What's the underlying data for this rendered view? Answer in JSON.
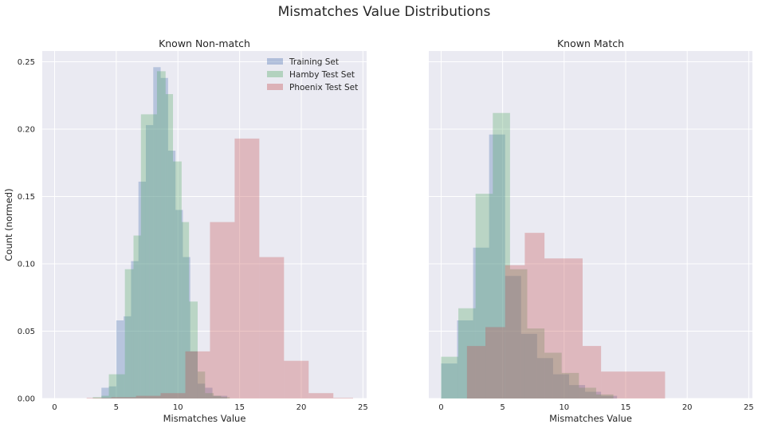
{
  "figure_title": "Mismatches Value Distributions",
  "chart_data": [
    {
      "type": "histogram",
      "title": "Known Non-match",
      "xlabel": "Mismatches Value",
      "ylabel": "Count (normed)",
      "xlim": [
        -1,
        25.3
      ],
      "ylim": [
        0,
        0.258
      ],
      "xticks": [
        0,
        5,
        10,
        15,
        20,
        25
      ],
      "yticks": [
        0.0,
        0.05,
        0.1,
        0.15,
        0.2,
        0.25
      ],
      "ytick_labels": [
        "0.00",
        "0.05",
        "0.10",
        "0.15",
        "0.20",
        "0.25"
      ],
      "grid": true,
      "legend_position": "top-right",
      "series": [
        {
          "name": "Training Set",
          "color": "#4c72b0",
          "bins": [
            [
              3.8,
              4.4,
              0.008
            ],
            [
              4.4,
              5.0,
              0.009
            ],
            [
              5.0,
              5.6,
              0.058
            ],
            [
              5.6,
              6.2,
              0.061
            ],
            [
              6.2,
              6.8,
              0.102
            ],
            [
              6.8,
              7.4,
              0.161
            ],
            [
              7.4,
              8.0,
              0.203
            ],
            [
              8.0,
              8.6,
              0.246
            ],
            [
              8.6,
              9.2,
              0.238
            ],
            [
              9.2,
              9.8,
              0.184
            ],
            [
              9.8,
              10.4,
              0.14
            ],
            [
              10.4,
              11.0,
              0.105
            ],
            [
              11.0,
              11.6,
              0.035
            ],
            [
              11.6,
              12.2,
              0.011
            ],
            [
              12.2,
              12.8,
              0.008
            ],
            [
              12.8,
              13.4,
              0.002
            ],
            [
              13.4,
              14.0,
              0.002
            ]
          ]
        },
        {
          "name": "Hamby Test Set",
          "color": "#55a868",
          "bins": [
            [
              3.1,
              3.8,
              0.001
            ],
            [
              3.8,
              4.4,
              0.002
            ],
            [
              4.4,
              5.1,
              0.018
            ],
            [
              5.1,
              5.7,
              0.018
            ],
            [
              5.7,
              6.4,
              0.096
            ],
            [
              6.4,
              7.0,
              0.121
            ],
            [
              7.0,
              7.7,
              0.211
            ],
            [
              7.7,
              8.3,
              0.211
            ],
            [
              8.3,
              9.0,
              0.243
            ],
            [
              9.0,
              9.6,
              0.226
            ],
            [
              9.6,
              10.3,
              0.176
            ],
            [
              10.3,
              10.9,
              0.131
            ],
            [
              10.9,
              11.6,
              0.072
            ],
            [
              11.6,
              12.2,
              0.02
            ],
            [
              12.2,
              12.9,
              0.004
            ],
            [
              12.9,
              13.5,
              0.002
            ],
            [
              13.5,
              14.2,
              0.001
            ]
          ]
        },
        {
          "name": "Phoenix Test Set",
          "color": "#c44e52",
          "bins": [
            [
              2.6,
              4.6,
              0.0005
            ],
            [
              4.6,
              6.6,
              0.001
            ],
            [
              6.6,
              8.6,
              0.002
            ],
            [
              8.6,
              10.6,
              0.004
            ],
            [
              10.6,
              12.6,
              0.035
            ],
            [
              12.6,
              14.6,
              0.131
            ],
            [
              14.6,
              16.6,
              0.193
            ],
            [
              16.6,
              18.6,
              0.105
            ],
            [
              18.6,
              20.6,
              0.028
            ],
            [
              20.6,
              22.6,
              0.004
            ],
            [
              22.6,
              24.2,
              0.0005
            ]
          ]
        }
      ]
    },
    {
      "type": "histogram",
      "title": "Known Match",
      "xlabel": "Mismatches Value",
      "ylabel": "",
      "xlim": [
        -1,
        25.3
      ],
      "ylim": [
        0,
        0.258
      ],
      "xticks": [
        0,
        5,
        10,
        15,
        20,
        25
      ],
      "yticks": [
        0.0,
        0.05,
        0.1,
        0.15,
        0.2,
        0.25
      ],
      "ytick_labels": [],
      "grid": true,
      "series": [
        {
          "name": "Training Set",
          "color": "#4c72b0",
          "bins": [
            [
              0.0,
              1.3,
              0.026
            ],
            [
              1.3,
              2.6,
              0.058
            ],
            [
              2.6,
              3.9,
              0.112
            ],
            [
              3.9,
              5.2,
              0.196
            ],
            [
              5.2,
              6.5,
              0.091
            ],
            [
              6.5,
              7.8,
              0.048
            ],
            [
              7.8,
              9.1,
              0.03
            ],
            [
              9.1,
              10.4,
              0.018
            ],
            [
              10.4,
              11.7,
              0.01
            ],
            [
              11.7,
              13.0,
              0.005
            ],
            [
              13.0,
              14.3,
              0.002
            ]
          ]
        },
        {
          "name": "Hamby Test Set",
          "color": "#55a868",
          "bins": [
            [
              0.0,
              1.4,
              0.031
            ],
            [
              1.4,
              2.8,
              0.067
            ],
            [
              2.8,
              4.2,
              0.152
            ],
            [
              4.2,
              5.6,
              0.212
            ],
            [
              5.6,
              7.0,
              0.096
            ],
            [
              7.0,
              8.4,
              0.052
            ],
            [
              8.4,
              9.8,
              0.034
            ],
            [
              9.8,
              11.2,
              0.019
            ],
            [
              11.2,
              12.6,
              0.008
            ],
            [
              12.6,
              14.0,
              0.003
            ]
          ]
        },
        {
          "name": "Phoenix Test Set",
          "color": "#c44e52",
          "bins": [
            [
              2.1,
              3.6,
              0.039
            ],
            [
              3.6,
              5.2,
              0.053
            ],
            [
              5.2,
              6.8,
              0.099
            ],
            [
              6.8,
              8.4,
              0.123
            ],
            [
              8.4,
              11.5,
              0.104
            ],
            [
              11.5,
              13.0,
              0.039
            ],
            [
              13.0,
              18.2,
              0.02
            ]
          ]
        }
      ]
    }
  ]
}
